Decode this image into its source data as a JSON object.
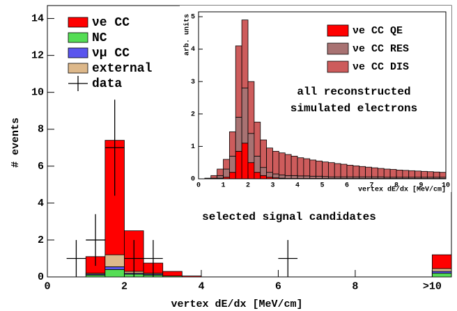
{
  "chart_data": [
    {
      "type": "histogram",
      "xlabel": "vertex dE/dx [MeV/cm]",
      "ylabel": "# events",
      "annotation": "selected signal candidates",
      "bins": [
        0,
        0.5,
        1,
        1.5,
        2,
        2.5,
        3,
        3.5,
        4,
        4.5,
        5,
        5.5,
        6,
        6.5,
        7,
        7.5,
        8,
        8.5,
        9,
        9.5,
        10,
        10.5
      ],
      "series": [
        {
          "name": "νe CC",
          "color": "#ff0000",
          "values": [
            0,
            0,
            0.9,
            6.2,
            2.2,
            0.55,
            0.25,
            0.05,
            0,
            0,
            0,
            0,
            0,
            0,
            0,
            0,
            0,
            0,
            0,
            0,
            0.75
          ]
        },
        {
          "name": "NC",
          "color": "#55dd55",
          "values": [
            0,
            0,
            0.1,
            0.4,
            0.15,
            0.1,
            0.05,
            0,
            0,
            0,
            0,
            0,
            0,
            0,
            0,
            0,
            0,
            0,
            0,
            0,
            0.2
          ]
        },
        {
          "name": "νμ CC",
          "color": "#5a55ee",
          "values": [
            0,
            0,
            0.05,
            0.15,
            0.05,
            0.05,
            0,
            0,
            0,
            0,
            0,
            0,
            0,
            0,
            0,
            0,
            0,
            0,
            0,
            0,
            0.1
          ]
        },
        {
          "name": "external",
          "color": "#ddb88a",
          "values": [
            0,
            0,
            0.05,
            0.65,
            0.1,
            0.05,
            0,
            0,
            0,
            0,
            0,
            0,
            0,
            0,
            0,
            0,
            0,
            0,
            0,
            0,
            0.15
          ]
        }
      ],
      "data": {
        "name": "data",
        "color": "#000000",
        "x": [
          0.75,
          1.25,
          1.75,
          2.25,
          2.75,
          6.25
        ],
        "values": [
          1,
          2,
          7,
          1,
          1,
          1
        ],
        "errors": [
          1,
          1.4,
          2.6,
          1,
          1,
          1
        ]
      },
      "xlim": [
        0,
        10.5
      ],
      "ylim": [
        0,
        14.7
      ],
      "xticks": [
        0,
        2,
        4,
        6,
        8,
        {
          "value": 10,
          "label": ">10"
        }
      ],
      "yticks": [
        0,
        2,
        4,
        6,
        8,
        10,
        12,
        14
      ],
      "legend": "upper left"
    },
    {
      "type": "histogram",
      "xlabel": "vertex dE/dx [MeV/cm]",
      "ylabel": "arb. units",
      "annotation": [
        "all reconstructed",
        "simulated electrons"
      ],
      "bins": [
        0,
        0.25,
        0.5,
        0.75,
        1,
        1.25,
        1.5,
        1.75,
        2,
        2.25,
        2.5,
        2.75,
        3,
        3.25,
        3.5,
        3.75,
        4,
        4.25,
        4.5,
        4.75,
        5,
        5.25,
        5.5,
        5.75,
        6,
        6.25,
        6.5,
        6.75,
        7,
        7.25,
        7.5,
        7.75,
        8,
        8.25,
        8.5,
        8.75,
        9,
        9.25,
        9.5,
        9.75,
        10
      ],
      "series": [
        {
          "name": "νe CC QE",
          "color": "#ff0000",
          "values": [
            0,
            0,
            0,
            0.02,
            0.05,
            0.2,
            0.85,
            1.1,
            0.5,
            0.2,
            0.1,
            0.05,
            0.03,
            0.02,
            0.01,
            0.01,
            0.01,
            0.01,
            0.01,
            0.01,
            0.01,
            0.01,
            0.01,
            0.01,
            0.01,
            0.01,
            0.01,
            0.01,
            0.01,
            0.01,
            0.01,
            0.01,
            0.01,
            0.01,
            0.01,
            0.01,
            0.01,
            0.01,
            0.01,
            0.01
          ]
        },
        {
          "name": "νe CC RES",
          "color": "#a87272",
          "values": [
            0,
            0,
            0.02,
            0.08,
            0.25,
            0.5,
            1.05,
            1.7,
            0.9,
            0.5,
            0.25,
            0.15,
            0.12,
            0.1,
            0.09,
            0.09,
            0.08,
            0.08,
            0.07,
            0.07,
            0.06,
            0.05,
            0.05,
            0.05,
            0.05,
            0.05,
            0.05,
            0.05,
            0.05,
            0.05,
            0.04,
            0.04,
            0.04,
            0.04,
            0.04,
            0.04,
            0.04,
            0.04,
            0.04,
            0.04
          ]
        },
        {
          "name": "νe CC DIS",
          "color": "#cd5c5c",
          "values": [
            0,
            0.02,
            0.08,
            0.2,
            0.3,
            0.75,
            2.2,
            2.1,
            1.6,
            1.05,
            0.85,
            0.75,
            0.7,
            0.68,
            0.65,
            0.6,
            0.56,
            0.53,
            0.5,
            0.47,
            0.45,
            0.44,
            0.41,
            0.39,
            0.36,
            0.34,
            0.32,
            0.3,
            0.28,
            0.26,
            0.25,
            0.24,
            0.22,
            0.21,
            0.2,
            0.19,
            0.18,
            0.17,
            0.16,
            0.15
          ]
        }
      ],
      "xlim": [
        0,
        10
      ],
      "ylim": [
        0,
        5.15
      ],
      "xticks": [
        0,
        1,
        2,
        3,
        4,
        5,
        6,
        7,
        8,
        9,
        10
      ],
      "yticks": [
        0,
        1,
        2,
        3,
        4,
        5
      ],
      "legend": "upper right"
    }
  ]
}
